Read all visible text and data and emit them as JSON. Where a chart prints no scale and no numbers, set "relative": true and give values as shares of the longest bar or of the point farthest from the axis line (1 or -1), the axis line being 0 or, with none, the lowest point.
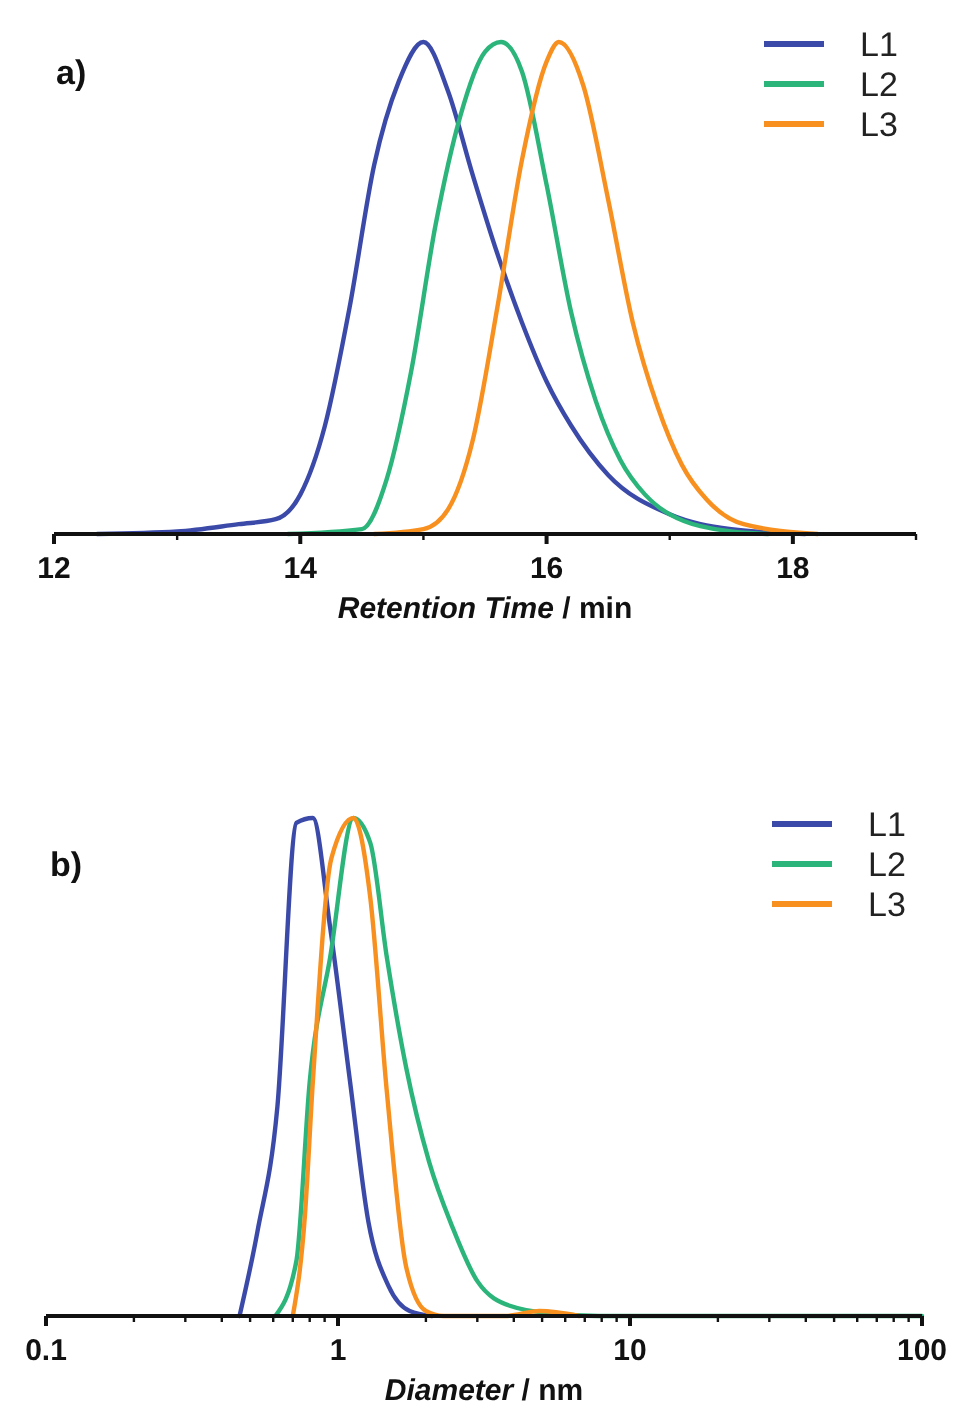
{
  "chart_data": [
    {
      "type": "line",
      "relative": true,
      "xlabel": "Retention Time / min",
      "annotations": [
        "a)"
      ],
      "xlim": [
        12,
        19
      ],
      "xticks": [
        12,
        {
          "value": 13,
          "label": null
        },
        14,
        {
          "value": 15,
          "label": null
        },
        16,
        {
          "value": 17,
          "label": null
        },
        18,
        {
          "value": 19,
          "label": null
        }
      ],
      "tick_labels": "x",
      "legend": "top right",
      "grid": false,
      "marker": "none",
      "line_style": "solid",
      "series": [
        {
          "name": "L1",
          "color": "#3b4aa8",
          "x": [
            12.35,
            13.0,
            13.5,
            13.8,
            14.0,
            14.2,
            14.4,
            14.6,
            14.8,
            15.0,
            15.2,
            15.4,
            15.6,
            15.8,
            16.0,
            16.2,
            16.5,
            17.0,
            17.5,
            18.1
          ],
          "values": [
            0,
            0.005,
            0.02,
            0.03,
            0.08,
            0.22,
            0.46,
            0.75,
            0.92,
            1,
            0.9,
            0.73,
            0.57,
            0.43,
            0.31,
            0.22,
            0.12,
            0.04,
            0.01,
            0
          ]
        },
        {
          "name": "L2",
          "color": "#2bb57a",
          "x": [
            13.9,
            14.5,
            14.7,
            14.9,
            15.1,
            15.3,
            15.5,
            15.63,
            15.8,
            16.0,
            16.2,
            16.4,
            16.6,
            16.8,
            17.0,
            17.5,
            17.8
          ],
          "values": [
            0,
            0.01,
            0.11,
            0.33,
            0.63,
            0.85,
            0.98,
            1,
            0.94,
            0.71,
            0.45,
            0.27,
            0.15,
            0.08,
            0.04,
            0.005,
            0
          ]
        },
        {
          "name": "L3",
          "color": "#f7901e",
          "x": [
            14.6,
            15.0,
            15.2,
            15.4,
            15.6,
            15.8,
            16.0,
            16.1,
            16.3,
            16.5,
            16.7,
            16.9,
            17.1,
            17.3,
            17.6,
            18.2
          ],
          "values": [
            0,
            0.01,
            0.05,
            0.19,
            0.46,
            0.76,
            0.96,
            1,
            0.91,
            0.68,
            0.43,
            0.26,
            0.14,
            0.07,
            0.02,
            0
          ]
        }
      ]
    },
    {
      "type": "line",
      "relative": true,
      "xlabel": "Diameter / nm",
      "annotations": [
        "b)"
      ],
      "log": "x",
      "xlim": [
        0.1,
        100
      ],
      "xticks": [
        0.1,
        {
          "value": 0.2,
          "label": null
        },
        {
          "value": 0.3,
          "label": null
        },
        {
          "value": 0.4,
          "label": null
        },
        {
          "value": 0.5,
          "label": null
        },
        {
          "value": 0.6,
          "label": null
        },
        {
          "value": 0.7,
          "label": null
        },
        {
          "value": 0.8,
          "label": null
        },
        {
          "value": 0.9,
          "label": null
        },
        1,
        {
          "value": 2,
          "label": null
        },
        {
          "value": 3,
          "label": null
        },
        {
          "value": 4,
          "label": null
        },
        {
          "value": 5,
          "label": null
        },
        {
          "value": 6,
          "label": null
        },
        {
          "value": 7,
          "label": null
        },
        {
          "value": 8,
          "label": null
        },
        {
          "value": 9,
          "label": null
        },
        10,
        {
          "value": 20,
          "label": null
        },
        {
          "value": 30,
          "label": null
        },
        {
          "value": 40,
          "label": null
        },
        {
          "value": 50,
          "label": null
        },
        {
          "value": 60,
          "label": null
        },
        {
          "value": 70,
          "label": null
        },
        {
          "value": 80,
          "label": null
        },
        {
          "value": 90,
          "label": null
        },
        100
      ],
      "tick_labels": "x",
      "legend": "top right",
      "grid": false,
      "marker": "none",
      "line_style": "solid",
      "series": [
        {
          "name": "L1",
          "color": "#3b4aa8",
          "x": [
            0.46,
            0.53,
            0.62,
            0.72,
            0.82,
            0.94,
            1.1,
            1.27,
            1.49,
            1.76,
            2.1
          ],
          "values": [
            0,
            0.17,
            0.42,
            0.99,
            1,
            0.78,
            0.47,
            0.19,
            0.06,
            0.01,
            0
          ]
        },
        {
          "name": "L2",
          "color": "#2bb57a",
          "x": [
            0.61,
            0.72,
            0.8,
            0.94,
            1.13,
            1.29,
            1.47,
            1.71,
            2.05,
            2.46,
            3.0,
            3.9,
            5.4,
            7.8,
            100
          ],
          "values": [
            0,
            0.11,
            0.47,
            0.72,
            1,
            0.95,
            0.72,
            0.5,
            0.31,
            0.18,
            0.07,
            0.02,
            0.005,
            0,
            0
          ]
        },
        {
          "name": "L3",
          "color": "#f7901e",
          "x": [
            0.7,
            0.77,
            0.82,
            0.95,
            1.13,
            1.29,
            1.47,
            1.71,
            2.0,
            2.3,
            3.75,
            4.9,
            6.7
          ],
          "values": [
            0,
            0.2,
            0.47,
            0.92,
            1,
            0.84,
            0.45,
            0.1,
            0.01,
            0,
            0,
            0.01,
            0
          ]
        }
      ]
    }
  ]
}
